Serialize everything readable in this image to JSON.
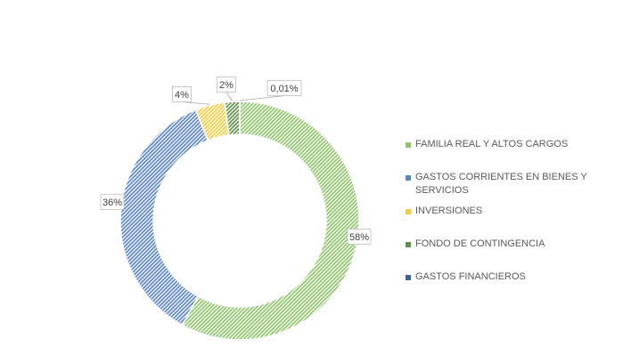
{
  "chart_data": {
    "type": "pie",
    "variant": "donut",
    "legend_position": "right",
    "categories": [
      "FAMILIA REAL Y ALTOS CARGOS",
      "GASTOS CORRIENTES EN BIENES Y SERVICIOS",
      "INVERSIONES",
      "FONDO DE CONTINGENCIA",
      "GASTOS FINANCIEROS"
    ],
    "values": [
      57.99,
      36.0,
      4.0,
      2.0,
      0.01
    ],
    "data_labels": [
      "58%",
      "36%",
      "4%",
      "2%",
      "0,01%"
    ],
    "colors": [
      "#8FC36B",
      "#5B85C6",
      "#F2CC3C",
      "#5E8F4A",
      "#3D5FA3"
    ]
  }
}
